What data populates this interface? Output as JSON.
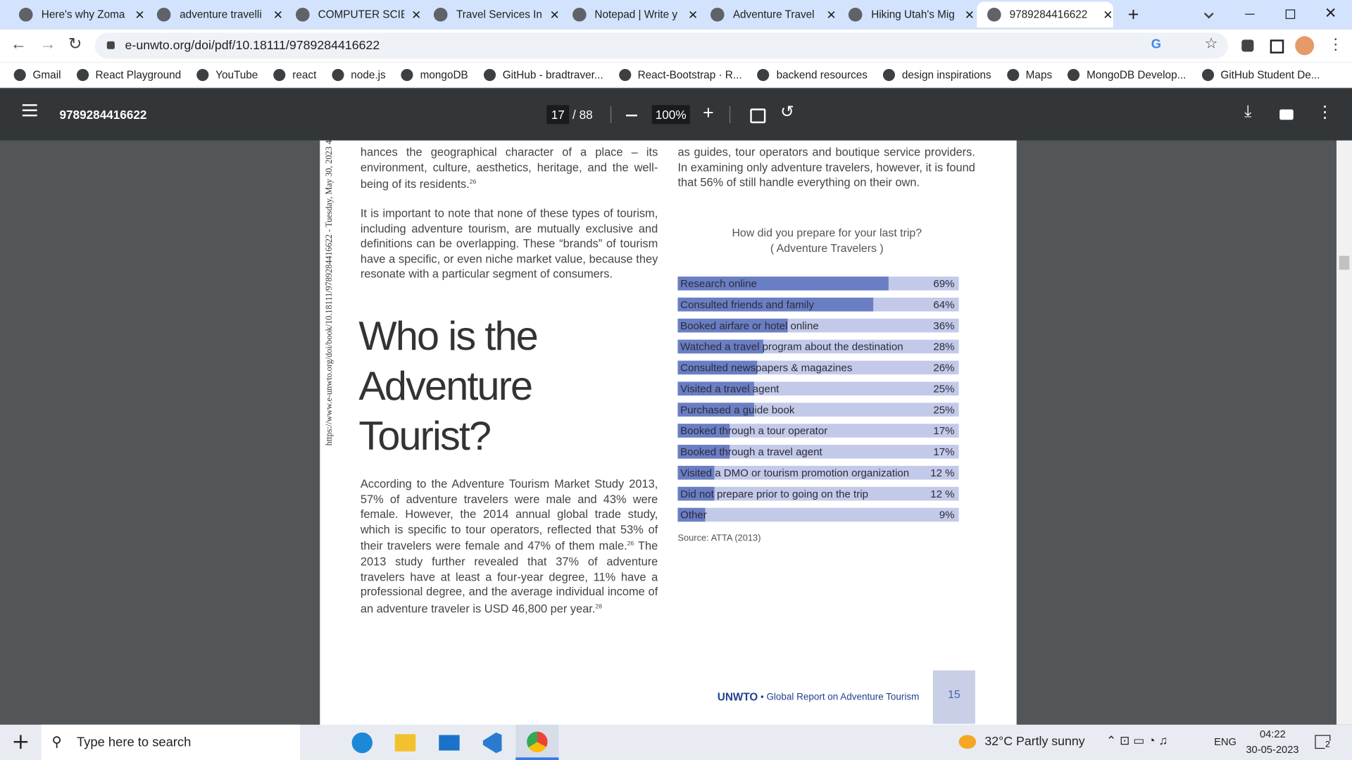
{
  "browser": {
    "tabs": [
      "Here's why Zoma",
      "adventure travelli",
      "COMPUTER SCIEN",
      "Travel Services In",
      "Notepad | Write y",
      "Adventure Travel",
      "Hiking Utah's Mig",
      "9789284416622"
    ],
    "address": "e-unwto.org/doi/pdf/10.18111/9789284416622",
    "bookmarks": [
      "Gmail",
      "React Playground",
      "YouTube",
      "react",
      "node.js",
      "mongoDB",
      "GitHub - bradtraver...",
      "React-Bootstrap · R...",
      "backend resources",
      "design inspirations",
      "Maps",
      "MongoDB Develop...",
      "GitHub Student De..."
    ]
  },
  "viewer": {
    "title": "9789284416622",
    "page": "17",
    "page_count": "/ 88",
    "zoom": "100%"
  },
  "pdf_page": {
    "stamp": "https://www.e-unwto.org/doi/book/10.18111/9789284416622 - Tuesday, May 30, 2023 4",
    "left_para1": [
      {
        "text": "hances the geographical character of a place – its environment, culture, aesthetics, heritage, and the well-being of its residents.",
        "note": "26"
      }
    ],
    "left_para2": "It is important to note that none of these types of tourism, including adventure tourism, are mutually exclusive and definitions can be overlapping. These “brands” of tourism have a specific, or even niche market value, because they resonate with a particular segment of consumers.",
    "heading": [
      "Who is the",
      "Adventure",
      "Tourist?"
    ],
    "left_para3": [
      {
        "text": "According to the Adventure Tourism Market Study 2013, 57% of adventure travelers were male and 43% were female. However, the 2014 annual global trade study, which is specific to tour operators, reflected that 53% of their travelers were female and 47% of them male.",
        "note": "26"
      },
      {
        "text": " The 2013 study further revealed that 37% of adventure travelers have at least a four-year degree, 11% have a professional degree, and the average individual income of an adventure traveler is  USD 46,800 per year.",
        "note": "28"
      }
    ],
    "right_para1": "as guides, tour operators and boutique service providers. In examining only adventure travelers, however, it is found that 56% of still handle everything on their own.",
    "chart": {
      "type": "bar",
      "orientation": "horizontal",
      "title": "How did you prepare for your last trip?",
      "subtitle": "( Adventure Travelers )",
      "categories": [
        "Research online",
        "Consulted friends and family",
        "Booked airfare or hotel online",
        "Watched a travel program about the destination",
        "Consulted newspapers & magazines",
        "Visited a travel agent",
        "Purchased a guide book",
        "Booked through a tour operator",
        "Booked through a travel agent",
        "Visited a DMO or tourism promotion organization",
        "Did not prepare prior to going on the trip",
        "Other"
      ],
      "values": [
        69,
        64,
        36,
        28,
        26,
        25,
        25,
        17,
        17,
        12,
        12,
        9
      ],
      "value_labels": [
        "69%",
        "64%",
        "36%",
        "28%",
        "26%",
        "25%",
        "25%",
        "17%",
        "17%",
        "12 %",
        "12 %",
        "9%"
      ],
      "xlim": [
        0,
        92
      ],
      "color": "#6a7ec4",
      "track_color": "#c3cae9"
    },
    "source": "Source: ATTA (2013)",
    "footer": {
      "org": "UNWTO",
      "report": "• Global Report on Adventure Tourism",
      "page_number": "15"
    }
  },
  "taskbar": {
    "search": "Type here to search",
    "weather": "32°C  Partly sunny",
    "language": "ENG",
    "time": "04:22",
    "date": "30-05-2023",
    "notifications": "2"
  }
}
